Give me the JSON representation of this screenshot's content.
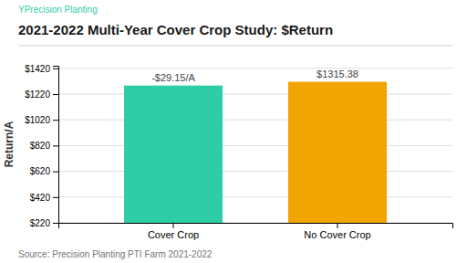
{
  "chart_data": {
    "type": "bar",
    "title": "2021-2022 Multi-Year Cover Crop Study: $Return",
    "annotations": [
      "YPrecision Planting",
      "Source: Precision Planting PTI Farm 2021-2022"
    ],
    "ylabel": "Return/A",
    "categories": [
      "Cover Crop",
      "No Cover Crop"
    ],
    "values": [
      1286.23,
      1315.38
    ],
    "value_labels": [
      "-$29.15/A",
      "$1315.38"
    ],
    "colors": [
      "#2ecda7",
      "#f0a500"
    ],
    "ylim": [
      220,
      1440
    ],
    "yticks": [
      {
        "value": 220,
        "label": "$220"
      },
      {
        "value": 420,
        "label": "$420"
      },
      {
        "value": 620,
        "label": "$620"
      },
      {
        "value": 820,
        "label": "$820"
      },
      {
        "value": 1020,
        "label": "$1020"
      },
      {
        "value": 1220,
        "label": "$1220"
      },
      {
        "value": 1420,
        "label": "$1420"
      }
    ],
    "grid": true
  }
}
